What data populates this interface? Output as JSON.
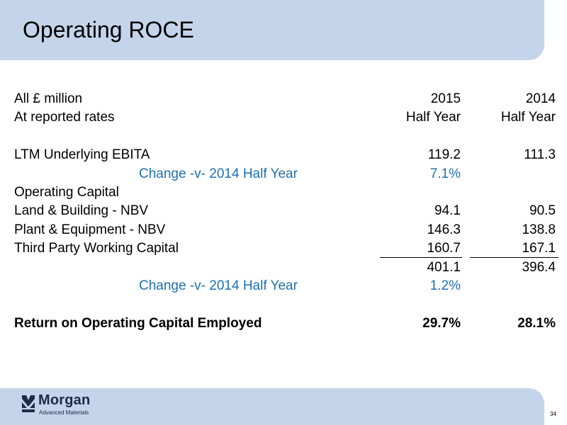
{
  "title": "Operating ROCE",
  "header_rows": [
    {
      "label": "All £ million",
      "c1": "2015",
      "c2": "2014"
    },
    {
      "label": "At reported rates",
      "c1": "Half Year",
      "c2": "Half Year"
    }
  ],
  "rows": [
    {
      "label": "LTM Underlying EBITA",
      "c1": "119.2",
      "c2": "111.3"
    },
    {
      "label": "Change -v- 2014 Half Year",
      "c1": "7.1%",
      "c2": ""
    },
    {
      "label": "Operating Capital",
      "c1": "",
      "c2": ""
    },
    {
      "label": "Land & Building - NBV",
      "c1": "94.1",
      "c2": "90.5"
    },
    {
      "label": "Plant & Equipment - NBV",
      "c1": "146.3",
      "c2": "138.8"
    },
    {
      "label": "Third Party Working Capital",
      "c1": "160.7",
      "c2": "167.1"
    },
    {
      "label": "",
      "c1": "401.1",
      "c2": "396.4"
    },
    {
      "label": "Change -v- 2014 Half Year",
      "c1": "1.2%",
      "c2": ""
    },
    {
      "label": "Return on Operating Capital Employed",
      "c1": "29.7%",
      "c2": "28.1%"
    }
  ],
  "footer": {
    "logo_name": "Morgan",
    "logo_sub": "Advanced Materials",
    "page_number": "34"
  },
  "colors": {
    "band": "#c4d4ea",
    "accent_blue": "#1f6fb0",
    "logo_navy": "#1d2a4a"
  }
}
